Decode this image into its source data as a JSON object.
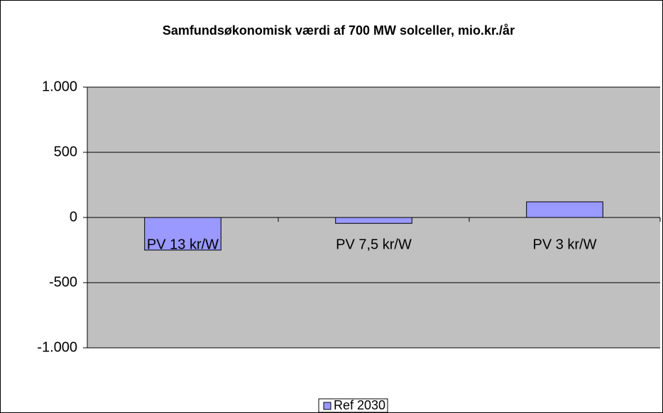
{
  "chart_data": {
    "type": "bar",
    "title": "Samfundsøkonomisk værdi af 700 MW solceller, mio.kr./år",
    "categories": [
      "PV 13 kr/W",
      "PV 7,5 kr/W",
      "PV 3 kr/W"
    ],
    "series": [
      {
        "name": "Ref 2030",
        "color": "#9999ff",
        "values": [
          -250,
          -45,
          120
        ]
      }
    ],
    "ylim": [
      -1000,
      1000
    ],
    "yticks": [
      {
        "value": -1000,
        "label": "-1.000"
      },
      -500,
      0,
      500,
      {
        "value": 1000,
        "label": "1.000"
      }
    ],
    "grid": true,
    "legend": "bottom"
  }
}
